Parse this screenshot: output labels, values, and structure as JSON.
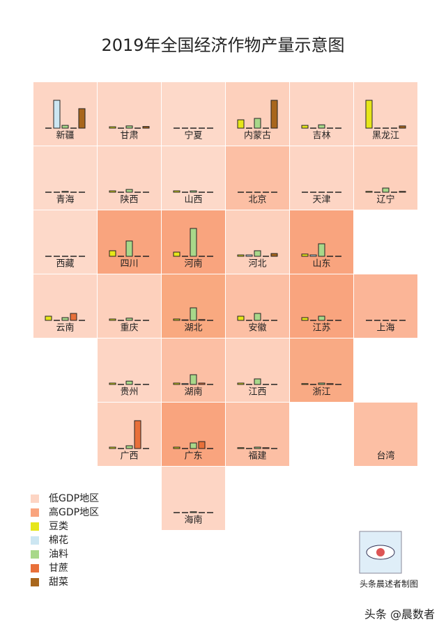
{
  "chart_data": {
    "type": "tile-bar",
    "title": "2019年全国经济作物产量示意图",
    "ylim": [
      0,
      100
    ],
    "crops": [
      {
        "name": "豆类",
        "color": "#e6e619"
      },
      {
        "name": "棉花",
        "color": "#cce6f2"
      },
      {
        "name": "油料",
        "color": "#a8d88a"
      },
      {
        "name": "甘蔗",
        "color": "#e8703a"
      },
      {
        "name": "甜菜",
        "color": "#a8661c"
      }
    ],
    "legend": [
      {
        "name": "低GDP地区",
        "color": "#fdd5c4"
      },
      {
        "name": "高GDP地区",
        "color": "#f9a47e"
      }
    ],
    "tiles": [
      {
        "name": "新疆",
        "col": 0,
        "row": 0,
        "color": "#fdd5c4",
        "values": [
          0,
          100,
          10,
          0,
          70
        ]
      },
      {
        "name": "甘肃",
        "col": 1,
        "row": 0,
        "color": "#fdd5c4",
        "values": [
          5,
          0,
          8,
          0,
          6
        ]
      },
      {
        "name": "宁夏",
        "col": 2,
        "row": 0,
        "color": "#fdd9c9",
        "values": [
          0,
          0,
          0,
          0,
          0
        ]
      },
      {
        "name": "内蒙古",
        "col": 3,
        "row": 0,
        "color": "#fdd0bc",
        "values": [
          30,
          0,
          35,
          0,
          100
        ]
      },
      {
        "name": "吉林",
        "col": 4,
        "row": 0,
        "color": "#fdd5c4",
        "values": [
          10,
          0,
          12,
          0,
          0
        ]
      },
      {
        "name": "黑龙江",
        "col": 5,
        "row": 0,
        "color": "#fdd5c4",
        "values": [
          100,
          0,
          0,
          0,
          8
        ]
      },
      {
        "name": "青海",
        "col": 0,
        "row": 1,
        "color": "#fdd9c9",
        "values": [
          0,
          0,
          3,
          0,
          0
        ]
      },
      {
        "name": "陕西",
        "col": 1,
        "row": 1,
        "color": "#fdd5c4",
        "values": [
          5,
          0,
          10,
          0,
          0
        ]
      },
      {
        "name": "山西",
        "col": 2,
        "row": 1,
        "color": "#fdd9c9",
        "values": [
          5,
          0,
          5,
          0,
          0
        ]
      },
      {
        "name": "北京",
        "col": 3,
        "row": 1,
        "color": "#fcbfa4",
        "values": [
          0,
          0,
          0,
          0,
          0
        ]
      },
      {
        "name": "天津",
        "col": 4,
        "row": 1,
        "color": "#fdd5c4",
        "values": [
          0,
          0,
          0,
          0,
          0
        ]
      },
      {
        "name": "辽宁",
        "col": 5,
        "row": 1,
        "color": "#fdd0bc",
        "values": [
          3,
          0,
          15,
          0,
          3
        ]
      },
      {
        "name": "西藏",
        "col": 0,
        "row": 2,
        "color": "#fdd9c9",
        "values": [
          0,
          0,
          0,
          0,
          0
        ]
      },
      {
        "name": "四川",
        "col": 1,
        "row": 2,
        "color": "#f9a47e",
        "values": [
          20,
          0,
          55,
          0,
          0
        ]
      },
      {
        "name": "河南",
        "col": 2,
        "row": 2,
        "color": "#f9a47e",
        "values": [
          15,
          0,
          100,
          0,
          0
        ]
      },
      {
        "name": "河北",
        "col": 3,
        "row": 2,
        "color": "#fdd0bc",
        "values": [
          5,
          5,
          20,
          0,
          10
        ]
      },
      {
        "name": "山东",
        "col": 4,
        "row": 2,
        "color": "#f9a47e",
        "values": [
          8,
          5,
          45,
          0,
          0
        ]
      },
      {
        "name": "云南",
        "col": 0,
        "row": 3,
        "color": "#fdd5c4",
        "values": [
          15,
          0,
          10,
          25,
          0
        ]
      },
      {
        "name": "重庆",
        "col": 1,
        "row": 3,
        "color": "#fdd0bc",
        "values": [
          5,
          0,
          8,
          0,
          0
        ]
      },
      {
        "name": "湖北",
        "col": 2,
        "row": 3,
        "color": "#f9a980",
        "values": [
          5,
          2,
          45,
          3,
          0
        ]
      },
      {
        "name": "安徽",
        "col": 3,
        "row": 3,
        "color": "#fcbfa4",
        "values": [
          15,
          0,
          25,
          0,
          0
        ]
      },
      {
        "name": "江苏",
        "col": 4,
        "row": 3,
        "color": "#f9a47e",
        "values": [
          10,
          0,
          15,
          0,
          0
        ]
      },
      {
        "name": "上海",
        "col": 5,
        "row": 3,
        "color": "#fbb597",
        "values": [
          0,
          0,
          0,
          0,
          0
        ]
      },
      {
        "name": "贵州",
        "col": 1,
        "row": 4,
        "color": "#fdd5c4",
        "values": [
          5,
          0,
          12,
          0,
          0
        ]
      },
      {
        "name": "湖南",
        "col": 2,
        "row": 4,
        "color": "#fcbfa4",
        "values": [
          5,
          3,
          35,
          5,
          0
        ]
      },
      {
        "name": "江西",
        "col": 3,
        "row": 4,
        "color": "#fdd0bc",
        "values": [
          5,
          0,
          20,
          0,
          0
        ]
      },
      {
        "name": "浙江",
        "col": 4,
        "row": 4,
        "color": "#f9aa84",
        "values": [
          3,
          0,
          5,
          3,
          0
        ]
      },
      {
        "name": "广西",
        "col": 1,
        "row": 5,
        "color": "#fdd0bc",
        "values": [
          5,
          0,
          10,
          100,
          0
        ]
      },
      {
        "name": "广东",
        "col": 2,
        "row": 5,
        "color": "#f9a47e",
        "values": [
          5,
          0,
          20,
          25,
          0
        ]
      },
      {
        "name": "福建",
        "col": 3,
        "row": 5,
        "color": "#fcbfa4",
        "values": [
          3,
          0,
          5,
          3,
          0
        ]
      },
      {
        "name": "台湾",
        "col": 5,
        "row": 5,
        "color": "#fcbfa4",
        "values": [
          null,
          null,
          null,
          null,
          null
        ]
      },
      {
        "name": "海南",
        "col": 2,
        "row": 6,
        "color": "#fdd5c4",
        "values": [
          0,
          0,
          3,
          0,
          0
        ]
      }
    ],
    "credit": "头条晨述者制图",
    "watermark": "头条 @晨数者"
  }
}
